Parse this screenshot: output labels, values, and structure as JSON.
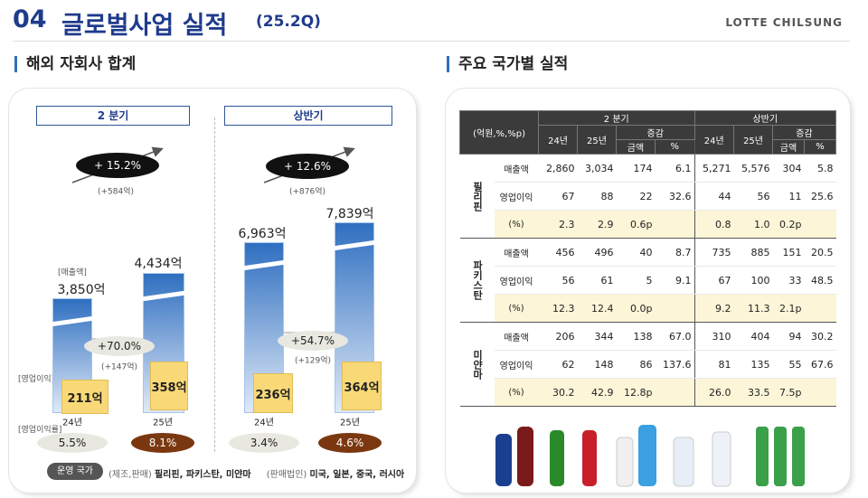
{
  "header": {
    "number": "04",
    "title": "글로벌사업 실적",
    "period": "(25.2Q)",
    "brand": "LOTTE CHILSUNG"
  },
  "left": {
    "title": "해외 자회사 합계",
    "sales_label": "[매출액]",
    "profit_label": "[영업이익]",
    "margin_label": "[영업이익률]",
    "panels": [
      {
        "label": "2 분기",
        "growth": "+ 15.2%",
        "growth_amount": "(+584억)",
        "sales": [
          "3,850억",
          "4,434억"
        ],
        "profit": [
          "211억",
          "358억"
        ],
        "profit_growth": "+70.0%",
        "profit_growth_amount": "(+147억)",
        "years": [
          "24년",
          "25년"
        ],
        "margins": [
          "5.5%",
          "8.1%"
        ]
      },
      {
        "label": "상반기",
        "growth": "+ 12.6%",
        "growth_amount": "(+876억)",
        "sales": [
          "6,963억",
          "7,839억"
        ],
        "profit": [
          "236억",
          "364억"
        ],
        "profit_growth": "+54.7%",
        "profit_growth_amount": "(+129억)",
        "years": [
          "24년",
          "25년"
        ],
        "margins": [
          "3.4%",
          "4.6%"
        ]
      }
    ],
    "footer": {
      "badge": "운영 국가",
      "note1": "(제조,판매)",
      "countries1": "필리핀, 파키스탄, 미얀마",
      "note2": "(판매법인)",
      "countries2": "미국, 일본, 중국, 러시아"
    }
  },
  "right": {
    "title": "주요 국가별 실적",
    "table": {
      "unit": "(억원,%,%p)",
      "periods": [
        "2 분기",
        "상반기"
      ],
      "years": [
        "24년",
        "25년"
      ],
      "change": "증감",
      "change_cols": [
        "금액",
        "%"
      ],
      "groups": [
        {
          "name": "필리핀",
          "rows": [
            [
              "매출액",
              "2,860",
              "3,034",
              "174",
              "6.1",
              "5,271",
              "5,576",
              "304",
              "5.8"
            ],
            [
              "영업이익",
              "67",
              "88",
              "22",
              "32.6",
              "44",
              "56",
              "11",
              "25.6"
            ],
            [
              "(%)",
              "2.3",
              "2.9",
              "0.6p",
              "",
              "0.8",
              "1.0",
              "0.2p",
              ""
            ]
          ]
        },
        {
          "name": "파키스탄",
          "rows": [
            [
              "매출액",
              "456",
              "496",
              "40",
              "8.7",
              "735",
              "885",
              "151",
              "20.5"
            ],
            [
              "영업이익",
              "56",
              "61",
              "5",
              "9.1",
              "67",
              "100",
              "33",
              "48.5"
            ],
            [
              "(%)",
              "12.3",
              "12.4",
              "0.0p",
              "",
              "9.2",
              "11.3",
              "2.1p",
              ""
            ]
          ]
        },
        {
          "name": "미얀마",
          "rows": [
            [
              "매출액",
              "206",
              "344",
              "138",
              "67.0",
              "310",
              "404",
              "94",
              "30.2"
            ],
            [
              "영업이익",
              "62",
              "148",
              "86",
              "137.6",
              "81",
              "135",
              "55",
              "67.6"
            ],
            [
              "(%)",
              "30.2",
              "42.9",
              "12.8p",
              "",
              "26.0",
              "33.5",
              "7.5p",
              ""
            ]
          ]
        }
      ]
    }
  }
}
